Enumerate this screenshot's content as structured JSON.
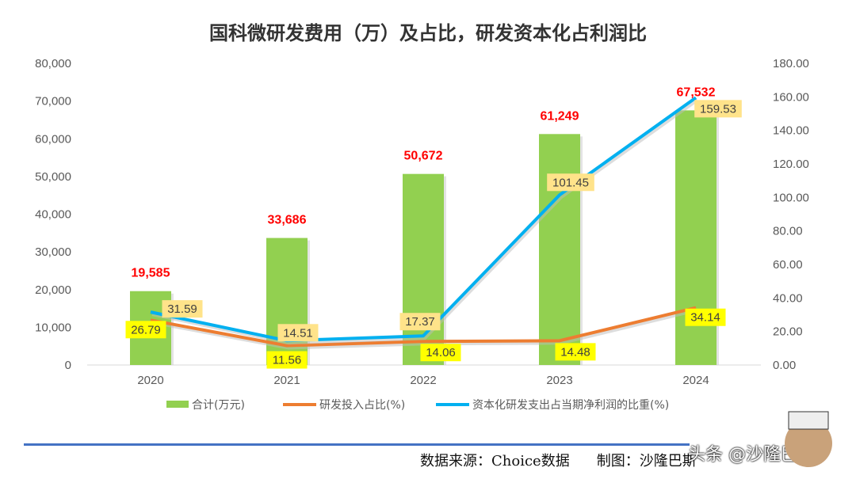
{
  "chart_data": {
    "type": "bar+line",
    "title": "国科微研发费用（万）及占比，研发资本化占利润比",
    "categories": [
      "2020",
      "2021",
      "2022",
      "2023",
      "2024"
    ],
    "series": [
      {
        "name": "合计(万元)",
        "type": "bar",
        "axis": "left",
        "values": [
          19585,
          33686,
          50672,
          61249,
          67532
        ],
        "labels": [
          "19,585",
          "33,686",
          "50,672",
          "61,249",
          "67,532"
        ],
        "color": "#92d050"
      },
      {
        "name": "研发投入占比(%)",
        "type": "line",
        "axis": "right",
        "values": [
          26.79,
          11.56,
          14.06,
          14.48,
          34.14
        ],
        "labels": [
          "26.79",
          "11.56",
          "14.06",
          "14.48",
          "34.14"
        ],
        "color": "#ed7d31",
        "label_bg": "#ffff00"
      },
      {
        "name": "资本化研发支出占当期净利润的比重(%)",
        "type": "line",
        "axis": "right",
        "values": [
          31.59,
          14.51,
          17.37,
          101.45,
          159.53
        ],
        "labels": [
          "31.59",
          "14.51",
          "17.37",
          "101.45",
          "159.53"
        ],
        "color": "#00b0f0",
        "label_bg": "#ffe38a"
      }
    ],
    "left_axis": {
      "range": [
        0,
        80000
      ],
      "ticks": [
        "0",
        "10,000",
        "20,000",
        "30,000",
        "40,000",
        "50,000",
        "60,000",
        "70,000",
        "80,000"
      ]
    },
    "right_axis": {
      "range": [
        0,
        180
      ],
      "ticks": [
        "0.00",
        "20.00",
        "40.00",
        "60.00",
        "80.00",
        "100.00",
        "120.00",
        "140.00",
        "160.00",
        "180.00"
      ]
    },
    "grid": false,
    "legend": "bottom"
  },
  "footer": {
    "source": "数据来源：Choice数据",
    "maker": "制图：沙隆巴斯"
  },
  "watermark": "头条 @沙隆巴斯"
}
